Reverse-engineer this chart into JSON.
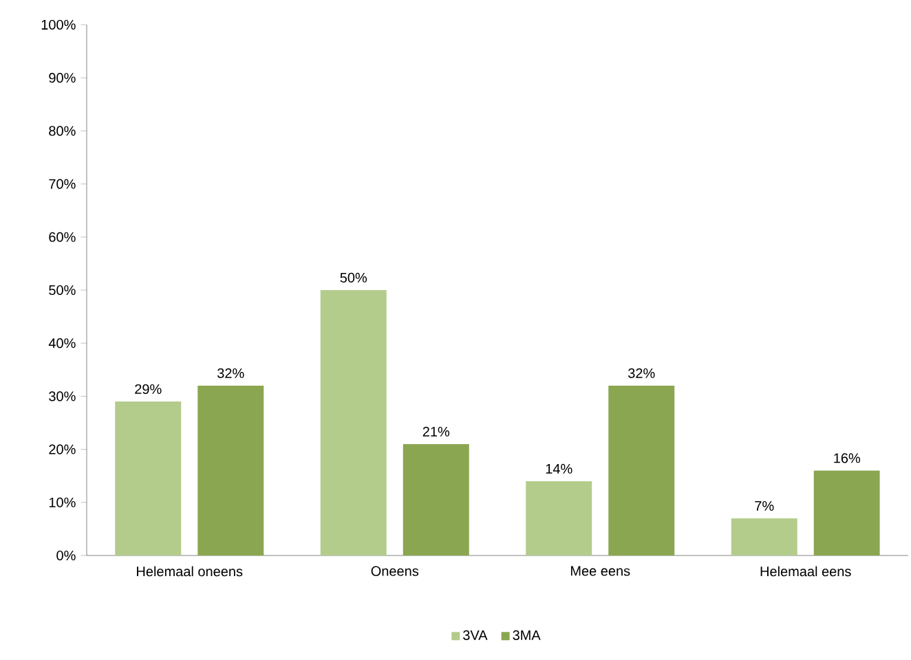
{
  "chart_data": {
    "type": "bar",
    "categories": [
      "Helemaal oneens",
      "Oneens",
      "Mee eens",
      "Helemaal eens"
    ],
    "series": [
      {
        "name": "3VA",
        "color": "#b3cc8c",
        "values": [
          29,
          50,
          14,
          7
        ],
        "value_labels": [
          "29%",
          "50%",
          "14%",
          "7%"
        ]
      },
      {
        "name": "3MA",
        "color": "#8aa650",
        "values": [
          32,
          21,
          32,
          16
        ],
        "value_labels": [
          "32%",
          "21%",
          "32%",
          "16%"
        ]
      }
    ],
    "ylim": [
      0,
      100
    ],
    "yticks": [
      {
        "value": 0,
        "label": "0%"
      },
      {
        "value": 10,
        "label": "10%"
      },
      {
        "value": 20,
        "label": "20%"
      },
      {
        "value": 30,
        "label": "30%"
      },
      {
        "value": 40,
        "label": "40%"
      },
      {
        "value": 50,
        "label": "50%"
      },
      {
        "value": 60,
        "label": "60%"
      },
      {
        "value": 70,
        "label": "70%"
      },
      {
        "value": 80,
        "label": "80%"
      },
      {
        "value": 90,
        "label": "90%"
      },
      {
        "value": 100,
        "label": "100%"
      }
    ],
    "legend": "bottom"
  }
}
